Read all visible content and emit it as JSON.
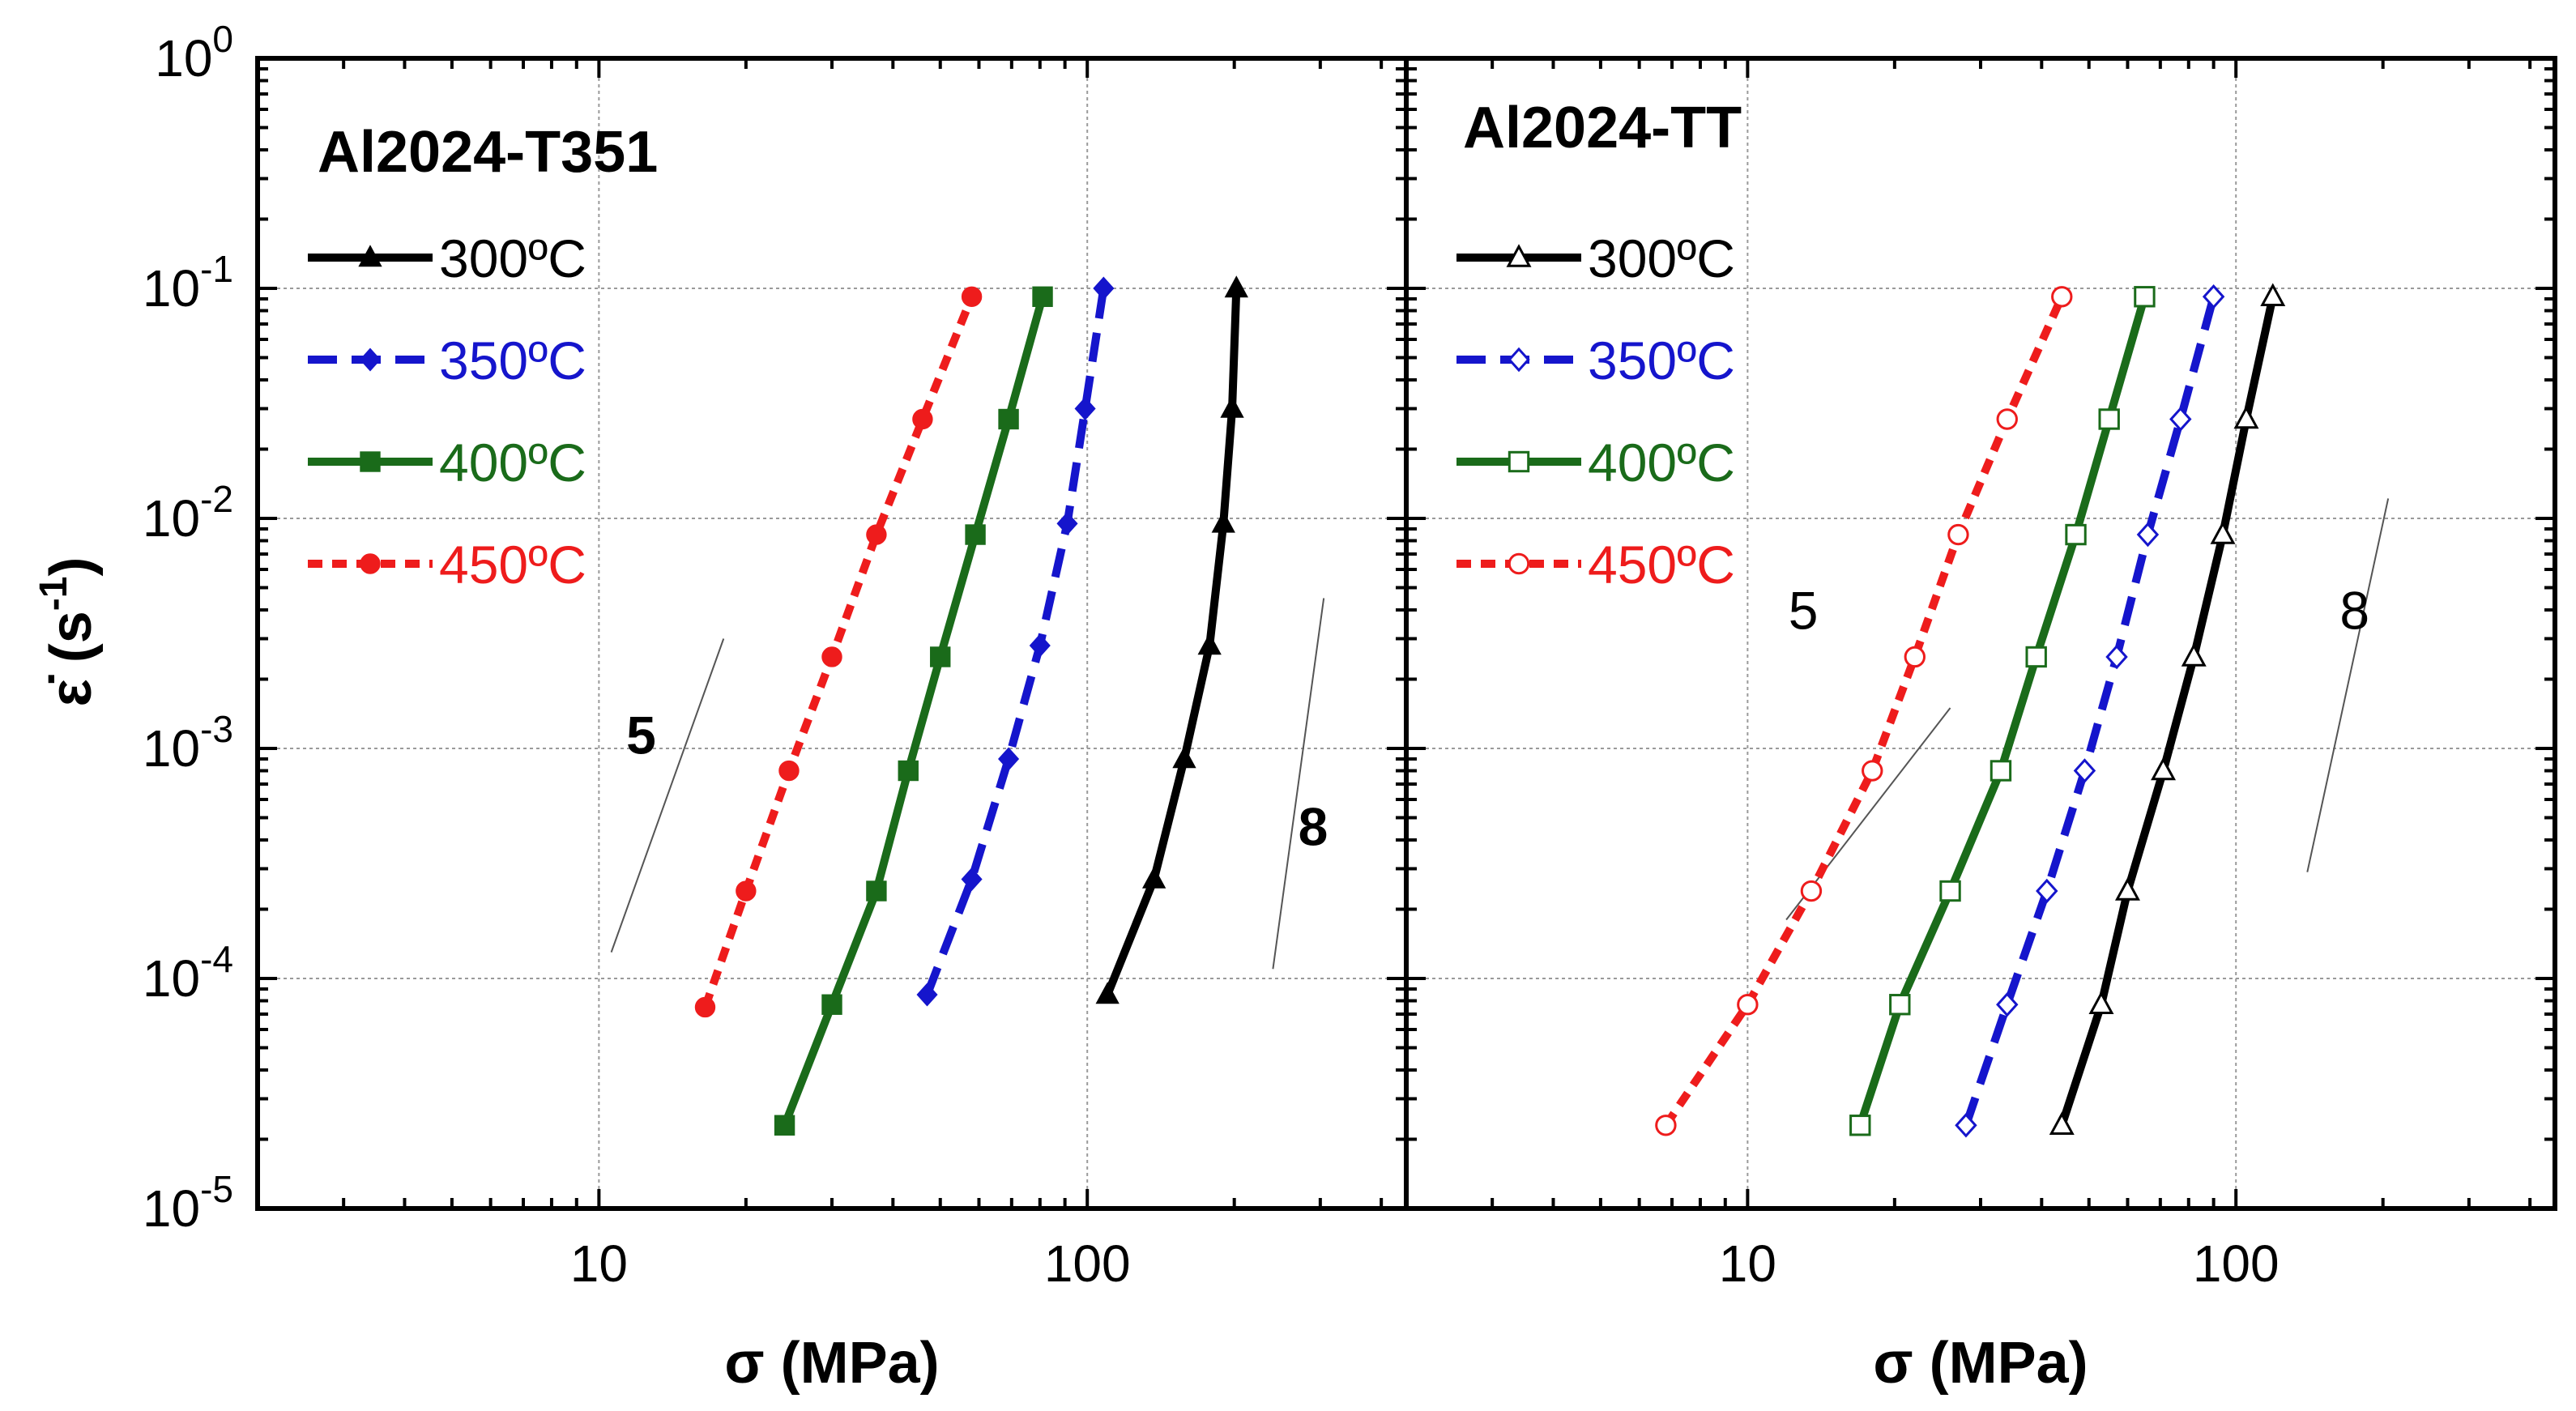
{
  "chart_data": [
    {
      "type": "line",
      "panel": "left",
      "title": "Al2024-T351",
      "xlabel": "σ (MPa)",
      "ylabel": "ε̇ (s⁻¹)",
      "x_scale": "log",
      "y_scale": "log",
      "xlim": [
        2,
        450
      ],
      "ylim": [
        1e-05,
        1
      ],
      "x_ticks": [
        {
          "value": 10,
          "label": "10"
        },
        {
          "value": 100,
          "label": "100"
        }
      ],
      "y_ticks": [
        {
          "value": 1e-05,
          "base": "10",
          "exp": "-5"
        },
        {
          "value": 0.0001,
          "base": "10",
          "exp": "-4"
        },
        {
          "value": 0.001,
          "base": "10",
          "exp": "-3"
        },
        {
          "value": 0.01,
          "base": "10",
          "exp": "-2"
        },
        {
          "value": 0.1,
          "base": "10",
          "exp": "-1"
        },
        {
          "value": 1,
          "base": "10",
          "exp": "0"
        }
      ],
      "grid": true,
      "legend_position": "top-left",
      "series": [
        {
          "name": "300ºC",
          "color": "#000000",
          "line": "solid",
          "marker": "triangle",
          "filled": true,
          "x": [
            110,
            137,
            158,
            178,
            190,
            198,
            202
          ],
          "y": [
            8.5e-05,
            0.00027,
            0.0009,
            0.0028,
            0.0095,
            0.03,
            0.1
          ]
        },
        {
          "name": "350ºC",
          "color": "#1515cc",
          "line": "dashed",
          "marker": "diamond",
          "filled": true,
          "x": [
            47,
            58,
            69,
            80,
            91,
            99,
            108
          ],
          "y": [
            8.5e-05,
            0.00027,
            0.0009,
            0.0028,
            0.0095,
            0.03,
            0.1
          ]
        },
        {
          "name": "400ºC",
          "color": "#1a6b1a",
          "line": "solid",
          "marker": "square",
          "filled": true,
          "x": [
            24,
            30,
            37,
            43,
            50,
            59,
            69,
            81
          ],
          "y": [
            2.3e-05,
            7.7e-05,
            0.00024,
            0.0008,
            0.0025,
            0.0085,
            0.027,
            0.092
          ]
        },
        {
          "name": "450ºC",
          "color": "#ee1c1c",
          "line": "dotted",
          "marker": "circle",
          "filled": true,
          "x": [
            16.5,
            20,
            24.5,
            30,
            37,
            46,
            58
          ],
          "y": [
            7.5e-05,
            0.00024,
            0.0008,
            0.0025,
            0.0085,
            0.027,
            0.092
          ]
        }
      ],
      "annotations": [
        {
          "text": "5"
        },
        {
          "text": "8"
        }
      ]
    },
    {
      "type": "line",
      "panel": "right",
      "title": "Al2024-TT",
      "xlabel": "σ (MPa)",
      "x_scale": "log",
      "y_scale": "log",
      "xlim": [
        2,
        450
      ],
      "ylim": [
        1e-05,
        1
      ],
      "x_ticks": [
        {
          "value": 10,
          "label": "10"
        },
        {
          "value": 100,
          "label": "100"
        }
      ],
      "grid": true,
      "legend_position": "top-left",
      "series": [
        {
          "name": "300ºC",
          "color": "#000000",
          "line": "solid",
          "marker": "triangle",
          "filled": false,
          "x": [
            44,
            53,
            60,
            71,
            82,
            94,
            105,
            119
          ],
          "y": [
            2.3e-05,
            7.7e-05,
            0.00024,
            0.0008,
            0.0025,
            0.0085,
            0.027,
            0.092
          ]
        },
        {
          "name": "350ºC",
          "color": "#1515cc",
          "line": "dashed",
          "marker": "diamond",
          "filled": false,
          "x": [
            28,
            34,
            41,
            49,
            57,
            66,
            77,
            90
          ],
          "y": [
            2.3e-05,
            7.7e-05,
            0.00024,
            0.0008,
            0.0025,
            0.0085,
            0.027,
            0.092
          ]
        },
        {
          "name": "400ºC",
          "color": "#1a6b1a",
          "line": "solid",
          "marker": "square",
          "filled": false,
          "x": [
            17,
            20.5,
            26,
            33,
            39,
            47,
            55,
            65
          ],
          "y": [
            2.3e-05,
            7.7e-05,
            0.00024,
            0.0008,
            0.0025,
            0.0085,
            0.027,
            0.092
          ]
        },
        {
          "name": "450ºC",
          "color": "#ee1c1c",
          "line": "dotted",
          "marker": "circle",
          "filled": false,
          "x": [
            6.8,
            10,
            13.5,
            18,
            22,
            27,
            34,
            44
          ],
          "y": [
            2.3e-05,
            7.7e-05,
            0.00024,
            0.0008,
            0.0025,
            0.0085,
            0.027,
            0.092
          ]
        }
      ],
      "annotations": [
        {
          "text": "5"
        },
        {
          "text": "8"
        }
      ]
    }
  ]
}
